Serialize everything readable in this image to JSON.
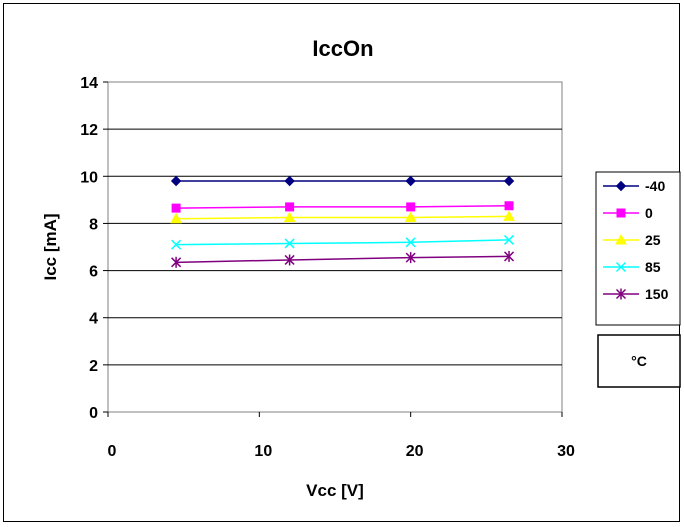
{
  "chart_data": {
    "type": "line",
    "title": "IccOn",
    "xlabel": "Vcc [V]",
    "ylabel": "Icc [mA]",
    "xlim": [
      0,
      30
    ],
    "ylim": [
      0,
      14
    ],
    "x_ticks": [
      "0",
      "10",
      "20",
      "30"
    ],
    "y_ticks": [
      "0",
      "2",
      "4",
      "6",
      "8",
      "10",
      "12",
      "14"
    ],
    "grid": "horizontal",
    "legend_position": "right",
    "legend_unit": "°C",
    "x": [
      4.5,
      12,
      20,
      26.5
    ],
    "series": [
      {
        "name": "-40",
        "color": "#000080",
        "marker": "diamond",
        "values": [
          9.8,
          9.8,
          9.8,
          9.8
        ]
      },
      {
        "name": "0",
        "color": "#FF00FF",
        "marker": "square",
        "values": [
          8.65,
          8.7,
          8.7,
          8.75
        ]
      },
      {
        "name": "25",
        "color": "#FFFF00",
        "marker": "triangle",
        "values": [
          8.2,
          8.25,
          8.25,
          8.3
        ]
      },
      {
        "name": "85",
        "color": "#00FFFF",
        "marker": "x",
        "values": [
          7.1,
          7.15,
          7.2,
          7.3
        ]
      },
      {
        "name": "150",
        "color": "#800080",
        "marker": "star",
        "values": [
          6.35,
          6.45,
          6.55,
          6.6
        ]
      }
    ]
  }
}
